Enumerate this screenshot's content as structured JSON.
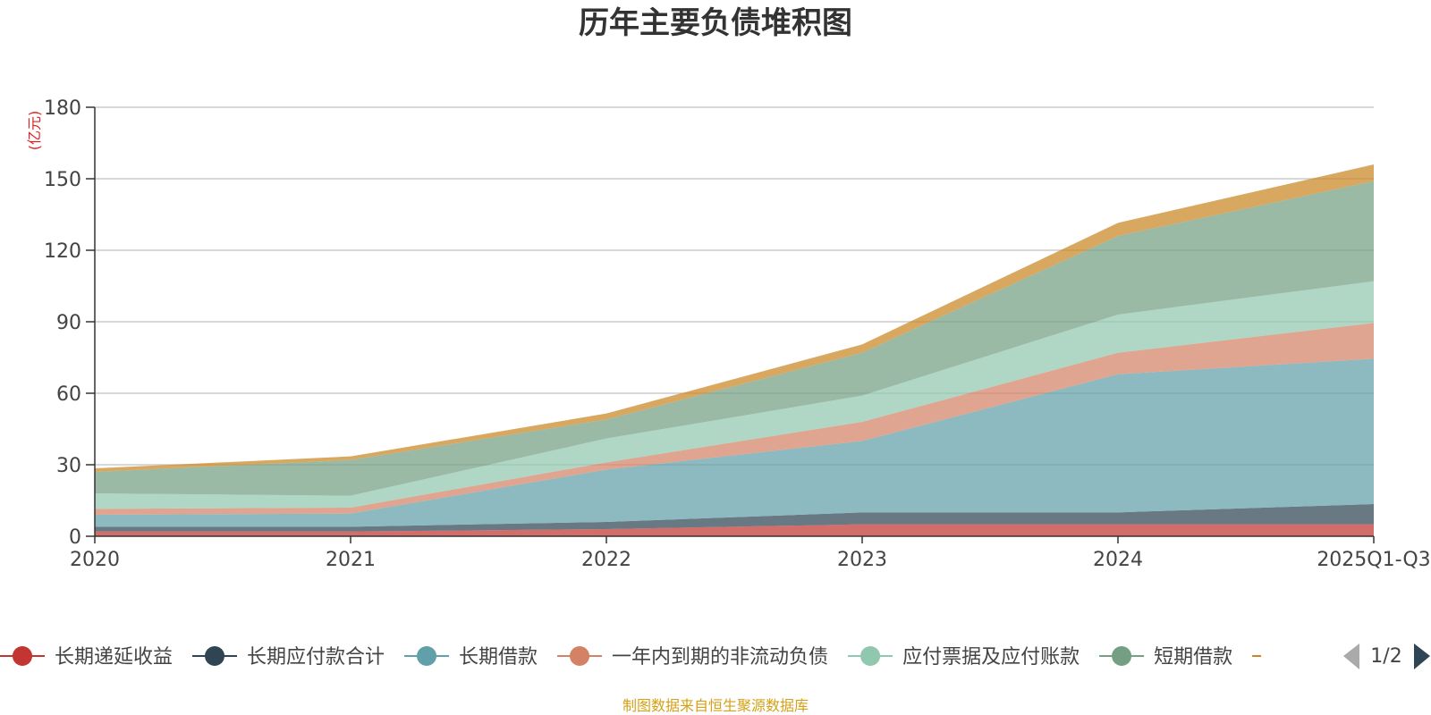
{
  "chart_data": {
    "type": "area",
    "stacked": true,
    "title": "历年主要负债堆积图",
    "ylabel": "(亿元)",
    "xlabel": "",
    "categories": [
      "2020",
      "2021",
      "2022",
      "2023",
      "2024",
      "2025Q1-Q3"
    ],
    "ylim": [
      0,
      180
    ],
    "yticks": [
      0,
      30,
      60,
      90,
      120,
      150,
      180
    ],
    "grid": true,
    "legend_position": "bottom",
    "legend_page": "1/2",
    "series": [
      {
        "name": "长期递延收益",
        "color": "#c23531",
        "values": [
          2,
          2,
          3,
          5,
          5,
          5
        ]
      },
      {
        "name": "长期应付款合计",
        "color": "#2f4554",
        "values": [
          2,
          2,
          3,
          5,
          5,
          8.5
        ]
      },
      {
        "name": "长期借款",
        "color": "#61a0a8",
        "values": [
          5,
          5.5,
          22,
          30,
          58,
          61
        ]
      },
      {
        "name": "一年内到期的非流动负债",
        "color": "#d48265",
        "values": [
          2.5,
          2.5,
          3,
          8,
          9,
          15
        ]
      },
      {
        "name": "应付票据及应付账款",
        "color": "#91c7ae",
        "values": [
          6.5,
          5,
          10,
          11,
          16,
          17.5
        ]
      },
      {
        "name": "短期借款",
        "color": "#749f83",
        "values": [
          9,
          15,
          8,
          18,
          33,
          42
        ]
      },
      {
        "name": "",
        "color": "#ca8622",
        "values": [
          1.5,
          1.5,
          2.5,
          3.5,
          5.5,
          7
        ]
      }
    ]
  },
  "source_text": "制图数据来自恒生聚源数据库",
  "colors": {
    "source": "#d4a017",
    "unit": "#e02020",
    "grid": "#cccccc",
    "axis": "#333333",
    "pager_active": "#2f4554",
    "pager_inactive": "#aaaaaa"
  }
}
